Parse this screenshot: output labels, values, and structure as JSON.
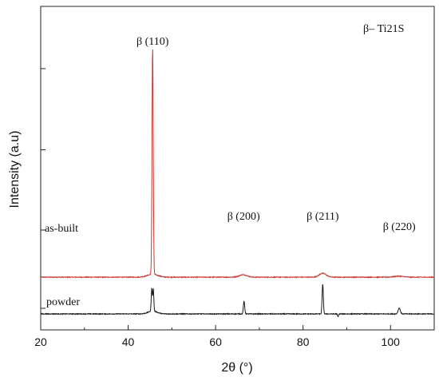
{
  "chart_data": {
    "type": "line",
    "xlabel": "2θ (°)",
    "ylabel": "Intensity (a.u)",
    "xlim": [
      20,
      110
    ],
    "x_ticks": [
      "20",
      "40",
      "60",
      "80",
      "100"
    ],
    "y_ticks_shown": false,
    "legend_label": "β– Ti21S",
    "legend_placement": "top-right",
    "grid": false,
    "series": [
      {
        "name": "as-built",
        "color": "#c8372d",
        "baseline": 0.38,
        "noise": 0.004,
        "peaks": [
          {
            "x": 45.6,
            "h": 2.35,
            "w": 0.14
          },
          {
            "x": 45.6,
            "h": 0.03,
            "w": 1.2
          },
          {
            "x": 66.3,
            "h": 0.025,
            "w": 0.9
          },
          {
            "x": 84.5,
            "h": 0.04,
            "w": 0.8
          },
          {
            "x": 101.9,
            "h": 0.01,
            "w": 1.0
          }
        ]
      },
      {
        "name": "powder",
        "color": "#1a1a1a",
        "baseline": 0.0,
        "noise": 0.004,
        "peaks": [
          {
            "x": 45.4,
            "h": 0.23,
            "w": 0.12
          },
          {
            "x": 45.75,
            "h": 0.23,
            "w": 0.12
          },
          {
            "x": 45.6,
            "h": 0.03,
            "w": 1.0
          },
          {
            "x": 66.5,
            "h": 0.13,
            "w": 0.15
          },
          {
            "x": 84.5,
            "h": 0.31,
            "w": 0.14
          },
          {
            "x": 102.0,
            "h": 0.06,
            "w": 0.25
          },
          {
            "x": 88.0,
            "h": -0.03,
            "w": 0.1
          }
        ]
      }
    ],
    "annotations": [
      {
        "text": "β (110)",
        "x": 45.6
      },
      {
        "text": "β (200)",
        "x": 66.4
      },
      {
        "text": "β (211)",
        "x": 84.5
      },
      {
        "text": "β (220)",
        "x": 102.0
      }
    ]
  }
}
